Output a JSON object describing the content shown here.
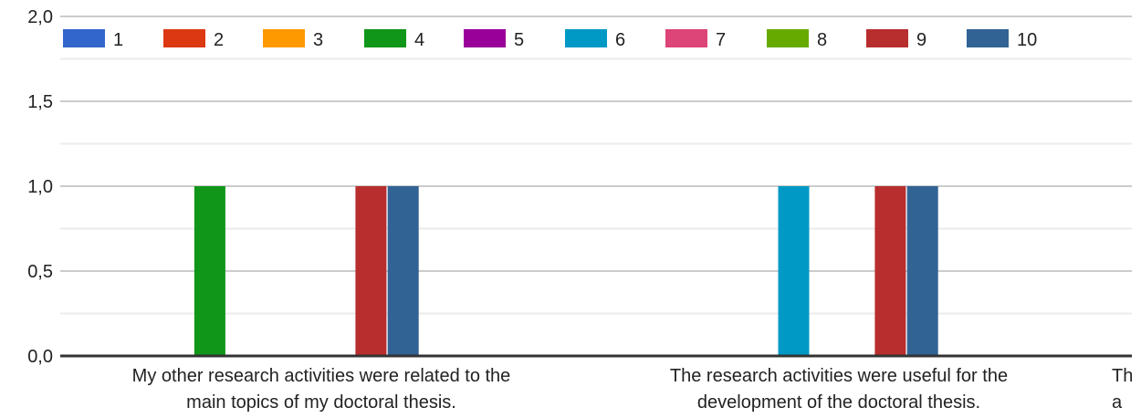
{
  "chart_data": {
    "type": "bar",
    "title": "",
    "xlabel": "",
    "ylabel": "",
    "ylim": [
      0,
      2
    ],
    "y_ticks": [
      "0,0",
      "0,5",
      "1,0",
      "1,5",
      "2,0"
    ],
    "y_tick_values": [
      0,
      0.5,
      1.0,
      1.5,
      2.0
    ],
    "grid": true,
    "legend_position": "top",
    "categories": [
      [
        "My other research activities were related to the",
        "main topics of my doctoral thesis."
      ],
      [
        "The research activities were useful for the",
        "development of the doctoral thesis."
      ],
      [
        "Th",
        "a"
      ]
    ],
    "series": [
      {
        "name": "1",
        "color": "#3366cc",
        "values": [
          0,
          0,
          0
        ]
      },
      {
        "name": "2",
        "color": "#dc3912",
        "values": [
          0,
          0,
          0
        ]
      },
      {
        "name": "3",
        "color": "#ff9900",
        "values": [
          0,
          0,
          0
        ]
      },
      {
        "name": "4",
        "color": "#109618",
        "values": [
          1,
          0,
          0
        ]
      },
      {
        "name": "5",
        "color": "#990099",
        "values": [
          0,
          0,
          0
        ]
      },
      {
        "name": "6",
        "color": "#0099c6",
        "values": [
          0,
          1,
          0
        ]
      },
      {
        "name": "7",
        "color": "#dd4477",
        "values": [
          0,
          0,
          0
        ]
      },
      {
        "name": "8",
        "color": "#66aa00",
        "values": [
          0,
          0,
          0
        ]
      },
      {
        "name": "9",
        "color": "#b82e2e",
        "values": [
          1,
          1,
          0
        ]
      },
      {
        "name": "10",
        "color": "#316395",
        "values": [
          1,
          1,
          0
        ]
      }
    ]
  }
}
